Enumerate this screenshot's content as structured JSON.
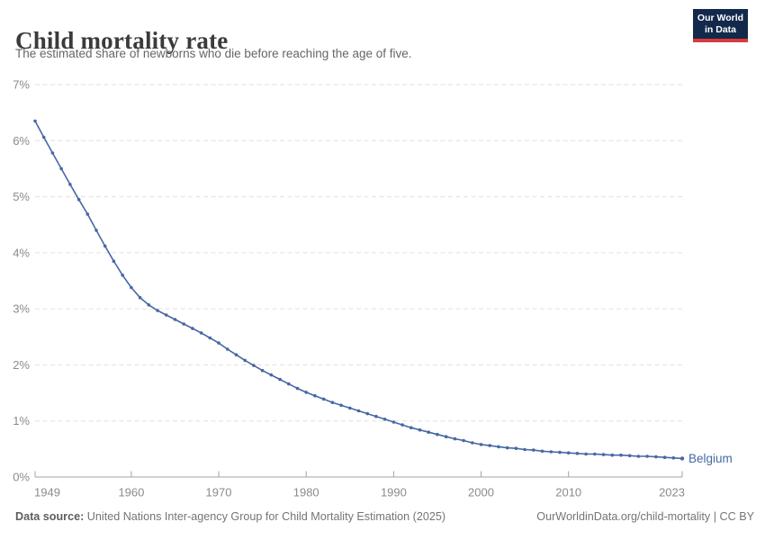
{
  "header": {
    "title": "Child mortality rate",
    "subtitle": "The estimated share of newborns who die before reaching the age of five.",
    "logo": {
      "line1": "Our World",
      "line2": "in Data",
      "bg_color": "#12294b",
      "accent_color": "#d73c3c",
      "text_color": "#ffffff"
    }
  },
  "chart_data": {
    "type": "line",
    "title": "Child mortality rate",
    "xlabel": "",
    "ylabel": "",
    "xlim": [
      1949,
      2023
    ],
    "ylim": [
      0,
      7
    ],
    "grid": "horizontal-dashed",
    "legend_position": "end-of-line-label",
    "yticks": [
      0,
      1,
      2,
      3,
      4,
      5,
      6,
      7
    ],
    "ytick_labels": [
      "0%",
      "1%",
      "2%",
      "3%",
      "4%",
      "5%",
      "6%",
      "7%"
    ],
    "xticks": [
      1949,
      1960,
      1970,
      1980,
      1990,
      2000,
      2010,
      2023
    ],
    "xtick_labels": [
      "1949",
      "1960",
      "1970",
      "1980",
      "1990",
      "2000",
      "2010",
      "2023"
    ],
    "series": [
      {
        "name": "Belgium",
        "color": "#4668a4",
        "unit": "%",
        "years": [
          1949,
          1950,
          1951,
          1952,
          1953,
          1954,
          1955,
          1956,
          1957,
          1958,
          1959,
          1960,
          1961,
          1962,
          1963,
          1964,
          1965,
          1966,
          1967,
          1968,
          1969,
          1970,
          1971,
          1972,
          1973,
          1974,
          1975,
          1976,
          1977,
          1978,
          1979,
          1980,
          1981,
          1982,
          1983,
          1984,
          1985,
          1986,
          1987,
          1988,
          1989,
          1990,
          1991,
          1992,
          1993,
          1994,
          1995,
          1996,
          1997,
          1998,
          1999,
          2000,
          2001,
          2002,
          2003,
          2004,
          2005,
          2006,
          2007,
          2008,
          2009,
          2010,
          2011,
          2012,
          2013,
          2014,
          2015,
          2016,
          2017,
          2018,
          2019,
          2020,
          2021,
          2022,
          2023
        ],
        "values": [
          6.35,
          6.06,
          5.78,
          5.5,
          5.22,
          4.95,
          4.69,
          4.4,
          4.12,
          3.85,
          3.6,
          3.38,
          3.2,
          3.07,
          2.97,
          2.89,
          2.81,
          2.73,
          2.65,
          2.57,
          2.48,
          2.39,
          2.28,
          2.18,
          2.08,
          1.99,
          1.9,
          1.82,
          1.74,
          1.66,
          1.58,
          1.51,
          1.45,
          1.39,
          1.33,
          1.28,
          1.23,
          1.18,
          1.13,
          1.08,
          1.03,
          0.98,
          0.93,
          0.88,
          0.84,
          0.8,
          0.76,
          0.72,
          0.68,
          0.65,
          0.61,
          0.58,
          0.56,
          0.54,
          0.52,
          0.51,
          0.49,
          0.48,
          0.46,
          0.45,
          0.44,
          0.43,
          0.42,
          0.41,
          0.41,
          0.4,
          0.39,
          0.39,
          0.38,
          0.37,
          0.37,
          0.36,
          0.35,
          0.34,
          0.33
        ]
      }
    ]
  },
  "footer": {
    "source_label": "Data source:",
    "source_text": "United Nations Inter-agency Group for Child Mortality Estimation (2025)",
    "citation": "OurWorldinData.org/child-mortality | CC BY"
  }
}
